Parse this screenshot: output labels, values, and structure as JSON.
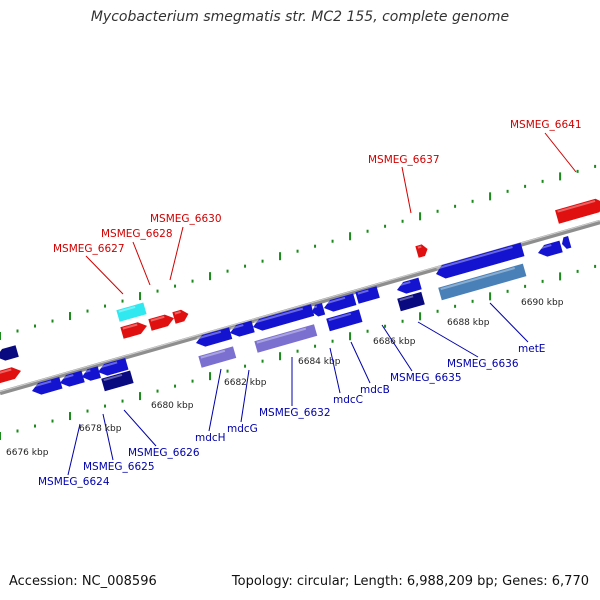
{
  "title": "Mycobacterium smegmatis str. MC2 155, complete genome",
  "accession": "Accession: NC_008596",
  "summary": "Topology: circular; Length: 6,988,209 bp; Genes: 6,770",
  "colors": {
    "forward_gene": "#e01010",
    "reverse_gene": "#1414d0",
    "reverse_gene_dark": "#0a0a80",
    "highlight_cyan": "#30e8f0",
    "operon_purple": "#7b70d0",
    "operon_steel": "#4a80b8",
    "backbone": "#909090",
    "ruler_tick": "#1a8a1a",
    "forward_label": "#d00000",
    "reverse_label": "#0000aa"
  },
  "kbp_ticks": [
    "6676 kbp",
    "6678 kbp",
    "6680 kbp",
    "6682 kbp",
    "6684 kbp",
    "6686 kbp",
    "6688 kbp",
    "6690 kbp"
  ],
  "forward_labels": [
    "MSMEG_6627",
    "MSMEG_6628",
    "MSMEG_6630",
    "MSMEG_6637",
    "MSMEG_6641"
  ],
  "reverse_labels": [
    "MSMEG_6624",
    "MSMEG_6625",
    "MSMEG_6626",
    "mdcH",
    "mdcG",
    "MSMEG_6632",
    "mdcC",
    "mdcB",
    "MSMEG_6635",
    "MSMEG_6636",
    "metE"
  ]
}
